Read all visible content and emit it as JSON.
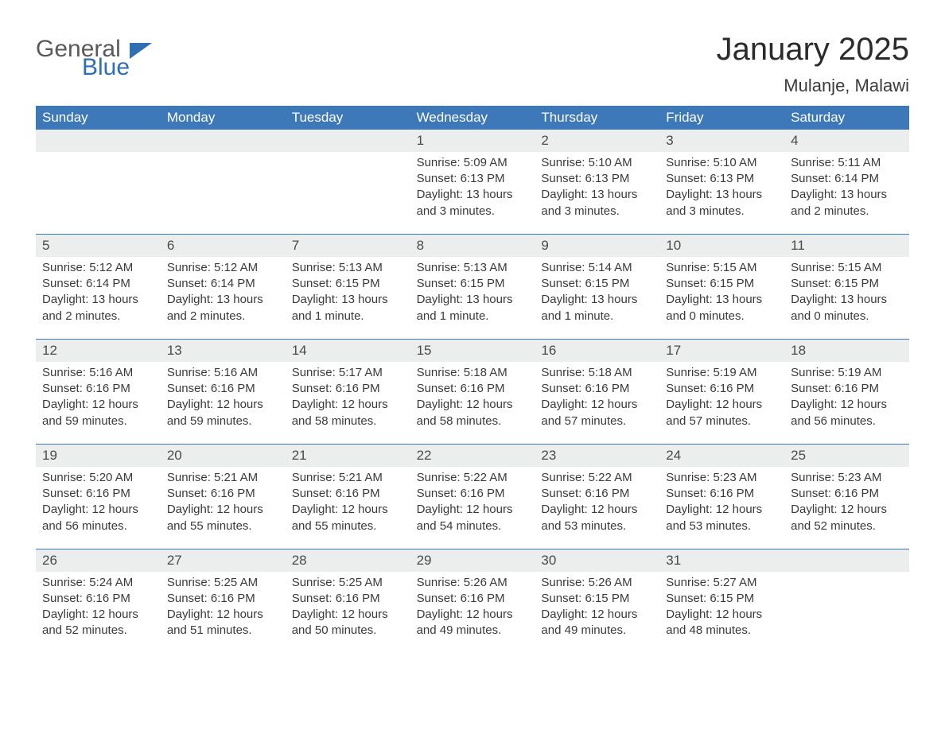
{
  "logo": {
    "word1": "General",
    "word2": "Blue"
  },
  "title": "January 2025",
  "location": "Mulanje, Malawi",
  "colors": {
    "header_bg": "#3d78b8",
    "header_text": "#ffffff",
    "daynum_bg": "#eceded",
    "row_border": "#3d78b8",
    "body_text": "#3a3a3a",
    "logo_gray": "#5a5a5a",
    "logo_blue": "#2f6fb3"
  },
  "weekdays": [
    "Sunday",
    "Monday",
    "Tuesday",
    "Wednesday",
    "Thursday",
    "Friday",
    "Saturday"
  ],
  "weeks": [
    [
      null,
      null,
      null,
      {
        "n": "1",
        "sunrise": "5:09 AM",
        "sunset": "6:13 PM",
        "daylight": "13 hours and 3 minutes."
      },
      {
        "n": "2",
        "sunrise": "5:10 AM",
        "sunset": "6:13 PM",
        "daylight": "13 hours and 3 minutes."
      },
      {
        "n": "3",
        "sunrise": "5:10 AM",
        "sunset": "6:13 PM",
        "daylight": "13 hours and 3 minutes."
      },
      {
        "n": "4",
        "sunrise": "5:11 AM",
        "sunset": "6:14 PM",
        "daylight": "13 hours and 2 minutes."
      }
    ],
    [
      {
        "n": "5",
        "sunrise": "5:12 AM",
        "sunset": "6:14 PM",
        "daylight": "13 hours and 2 minutes."
      },
      {
        "n": "6",
        "sunrise": "5:12 AM",
        "sunset": "6:14 PM",
        "daylight": "13 hours and 2 minutes."
      },
      {
        "n": "7",
        "sunrise": "5:13 AM",
        "sunset": "6:15 PM",
        "daylight": "13 hours and 1 minute."
      },
      {
        "n": "8",
        "sunrise": "5:13 AM",
        "sunset": "6:15 PM",
        "daylight": "13 hours and 1 minute."
      },
      {
        "n": "9",
        "sunrise": "5:14 AM",
        "sunset": "6:15 PM",
        "daylight": "13 hours and 1 minute."
      },
      {
        "n": "10",
        "sunrise": "5:15 AM",
        "sunset": "6:15 PM",
        "daylight": "13 hours and 0 minutes."
      },
      {
        "n": "11",
        "sunrise": "5:15 AM",
        "sunset": "6:15 PM",
        "daylight": "13 hours and 0 minutes."
      }
    ],
    [
      {
        "n": "12",
        "sunrise": "5:16 AM",
        "sunset": "6:16 PM",
        "daylight": "12 hours and 59 minutes."
      },
      {
        "n": "13",
        "sunrise": "5:16 AM",
        "sunset": "6:16 PM",
        "daylight": "12 hours and 59 minutes."
      },
      {
        "n": "14",
        "sunrise": "5:17 AM",
        "sunset": "6:16 PM",
        "daylight": "12 hours and 58 minutes."
      },
      {
        "n": "15",
        "sunrise": "5:18 AM",
        "sunset": "6:16 PM",
        "daylight": "12 hours and 58 minutes."
      },
      {
        "n": "16",
        "sunrise": "5:18 AM",
        "sunset": "6:16 PM",
        "daylight": "12 hours and 57 minutes."
      },
      {
        "n": "17",
        "sunrise": "5:19 AM",
        "sunset": "6:16 PM",
        "daylight": "12 hours and 57 minutes."
      },
      {
        "n": "18",
        "sunrise": "5:19 AM",
        "sunset": "6:16 PM",
        "daylight": "12 hours and 56 minutes."
      }
    ],
    [
      {
        "n": "19",
        "sunrise": "5:20 AM",
        "sunset": "6:16 PM",
        "daylight": "12 hours and 56 minutes."
      },
      {
        "n": "20",
        "sunrise": "5:21 AM",
        "sunset": "6:16 PM",
        "daylight": "12 hours and 55 minutes."
      },
      {
        "n": "21",
        "sunrise": "5:21 AM",
        "sunset": "6:16 PM",
        "daylight": "12 hours and 55 minutes."
      },
      {
        "n": "22",
        "sunrise": "5:22 AM",
        "sunset": "6:16 PM",
        "daylight": "12 hours and 54 minutes."
      },
      {
        "n": "23",
        "sunrise": "5:22 AM",
        "sunset": "6:16 PM",
        "daylight": "12 hours and 53 minutes."
      },
      {
        "n": "24",
        "sunrise": "5:23 AM",
        "sunset": "6:16 PM",
        "daylight": "12 hours and 53 minutes."
      },
      {
        "n": "25",
        "sunrise": "5:23 AM",
        "sunset": "6:16 PM",
        "daylight": "12 hours and 52 minutes."
      }
    ],
    [
      {
        "n": "26",
        "sunrise": "5:24 AM",
        "sunset": "6:16 PM",
        "daylight": "12 hours and 52 minutes."
      },
      {
        "n": "27",
        "sunrise": "5:25 AM",
        "sunset": "6:16 PM",
        "daylight": "12 hours and 51 minutes."
      },
      {
        "n": "28",
        "sunrise": "5:25 AM",
        "sunset": "6:16 PM",
        "daylight": "12 hours and 50 minutes."
      },
      {
        "n": "29",
        "sunrise": "5:26 AM",
        "sunset": "6:16 PM",
        "daylight": "12 hours and 49 minutes."
      },
      {
        "n": "30",
        "sunrise": "5:26 AM",
        "sunset": "6:15 PM",
        "daylight": "12 hours and 49 minutes."
      },
      {
        "n": "31",
        "sunrise": "5:27 AM",
        "sunset": "6:15 PM",
        "daylight": "12 hours and 48 minutes."
      },
      null
    ]
  ],
  "labels": {
    "sunrise_prefix": "Sunrise: ",
    "sunset_prefix": "Sunset: ",
    "daylight_prefix": "Daylight: "
  }
}
